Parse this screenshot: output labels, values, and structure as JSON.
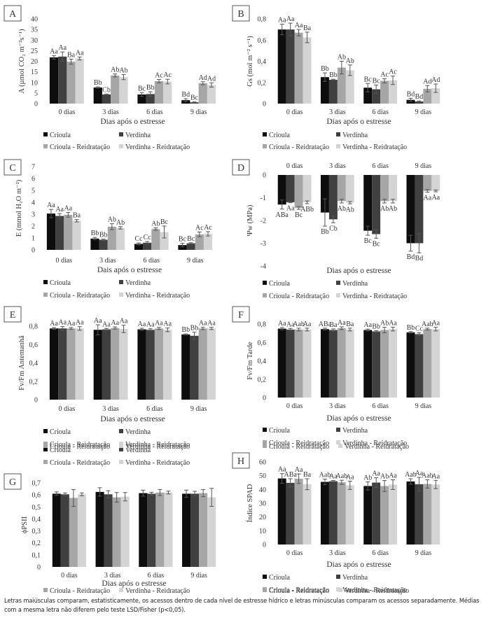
{
  "series_names": [
    "Crioula",
    "Verdinha",
    "Crioula - Reidratação",
    "Verdinha - Reidratação"
  ],
  "series_colors": [
    "#0d0d0d",
    "#404040",
    "#a6a6a6",
    "#d4d4d4"
  ],
  "caption": "Letras maiúsculas comparam, estatisticamente, os acessos dentro de cada nível de estresse hídrico e letras minúsculas comparam os acessos separadamente. Médias com a mesma letra não diferem pelo teste LSD/Fisher (p<0,05).",
  "chart_data": [
    {
      "panel": "A",
      "type": "bar",
      "ylabel": "A (µmol CO₂ m⁻²s⁻¹)",
      "xlabel": "Dias após o estresse",
      "categories": [
        "0 dias",
        "3 dias",
        "6 dias",
        "9 dias"
      ],
      "ylim": [
        0,
        40
      ],
      "yticks": [
        "0",
        "5",
        "10",
        "15",
        "20",
        "25",
        "30",
        "35",
        "40"
      ],
      "ytick_values": [
        0,
        5,
        10,
        15,
        20,
        25,
        30,
        35,
        40
      ],
      "series": [
        {
          "name": "Crioula",
          "values": [
            21.8,
            7.6,
            4.3,
            1.6
          ],
          "errors": [
            0.8,
            0.3,
            0.9,
            0.7
          ],
          "labels": [
            "Aa",
            "Bb",
            "Bc",
            "Bd"
          ]
        },
        {
          "name": "Verdinha",
          "values": [
            22.2,
            4.3,
            4.5,
            0.6
          ],
          "errors": [
            2.2,
            0.2,
            1.1,
            0.2
          ],
          "labels": [
            "Aa",
            "Cb",
            "Bb",
            "Bc"
          ]
        },
        {
          "name": "Crioula - Reidratação",
          "values": [
            19.8,
            13.3,
            10.6,
            9.6
          ],
          "errors": [
            1.2,
            0.7,
            0.8,
            0.7
          ],
          "labels": [
            "Ba",
            "Ab",
            "Ac",
            "Ad"
          ]
        },
        {
          "name": "Verdinha - Reidratação",
          "values": [
            21.3,
            12.5,
            10.4,
            8.8
          ],
          "errors": [
            0.7,
            1.2,
            1.1,
            1.0
          ],
          "labels": [
            "Aa",
            "Ab",
            "Ac",
            "Ad"
          ]
        }
      ]
    },
    {
      "panel": "B",
      "type": "bar",
      "ylabel": "Gs (mol m⁻² s⁻¹)",
      "xlabel": "Dias após o estresse",
      "categories": [
        "0 dias",
        "3 dias",
        "6 dias",
        "9 dias"
      ],
      "ylim": [
        0,
        0.8
      ],
      "yticks": [
        "0",
        "0,2",
        "0,4",
        "0,6",
        "0,8"
      ],
      "ytick_values": [
        0,
        0.2,
        0.4,
        0.6,
        0.8
      ],
      "series": [
        {
          "name": "Crioula",
          "values": [
            0.7,
            0.25,
            0.15,
            0.035
          ],
          "errors": [
            0.05,
            0.04,
            0.04,
            0.015
          ],
          "labels": [
            "Aa",
            "Bb",
            "Bc",
            "Bd"
          ]
        },
        {
          "name": "Verdinha",
          "values": [
            0.7,
            0.225,
            0.135,
            0.02
          ],
          "errors": [
            0.06,
            0.005,
            0.04,
            0.005
          ],
          "labels": [
            "Aa",
            "Bb",
            "Bc",
            "Bd"
          ]
        },
        {
          "name": "Crioula - Reidratação",
          "values": [
            0.67,
            0.34,
            0.215,
            0.14
          ],
          "errors": [
            0.03,
            0.06,
            0.02,
            0.03
          ],
          "labels": [
            "Aa",
            "Ab",
            "Ac",
            "Ad"
          ]
        },
        {
          "name": "Verdinha - Reidratação",
          "values": [
            0.625,
            0.315,
            0.22,
            0.145
          ],
          "errors": [
            0.05,
            0.05,
            0.04,
            0.04
          ],
          "labels": [
            "Ba",
            "Ab",
            "Ac",
            "Ad"
          ]
        }
      ]
    },
    {
      "panel": "C",
      "type": "bar",
      "ylabel": "E (mmol H₂O m⁻²)",
      "xlabel": "Dais após o estresse",
      "categories": [
        "0 dias",
        "3 dias",
        "6 dias",
        "9 dias"
      ],
      "ylim": [
        0,
        7
      ],
      "yticks": [
        "0",
        "1",
        "2",
        "3",
        "4",
        "5",
        "6",
        "7"
      ],
      "ytick_values": [
        0,
        1,
        2,
        3,
        4,
        5,
        6,
        7
      ],
      "series": [
        {
          "name": "Crioula",
          "values": [
            3.05,
            0.95,
            0.5,
            0.4
          ],
          "errors": [
            0.35,
            0.1,
            0.08,
            0.15
          ],
          "labels": [
            "Aa",
            "Bb",
            "Cc",
            "Bc"
          ]
        },
        {
          "name": "Verdinha",
          "values": [
            2.85,
            0.85,
            0.6,
            0.55
          ],
          "errors": [
            0.2,
            0.05,
            0.1,
            0.05
          ],
          "labels": [
            "Aa",
            "Bb",
            "Cc",
            "Bc"
          ]
        },
        {
          "name": "Crioula - Reidratação",
          "values": [
            2.95,
            1.95,
            1.75,
            1.3
          ],
          "errors": [
            0.2,
            0.25,
            0.1,
            0.2
          ],
          "labels": [
            "Aa",
            "Ab",
            "Ab",
            "Ac"
          ]
        },
        {
          "name": "Verdinha - Reidratação",
          "values": [
            2.45,
            1.85,
            1.5,
            1.35
          ],
          "errors": [
            0.1,
            0.1,
            0.5,
            0.18
          ],
          "labels": [
            "Ba",
            "Ab",
            "Bc",
            "Ac"
          ]
        }
      ]
    },
    {
      "panel": "D",
      "type": "bar",
      "ylabel": "Ψw (MPa)",
      "xlabel": "Dias após o estresse",
      "categories": [
        "0 dias",
        "3 dias",
        "6 dias",
        "9 dias"
      ],
      "category_position": "top",
      "ylim": [
        -4,
        0
      ],
      "yticks": [
        "-4",
        "-3",
        "-2",
        "-1",
        "0"
      ],
      "ytick_values": [
        -4,
        -3,
        -2,
        -1,
        0
      ],
      "series": [
        {
          "name": "Crioula",
          "values": [
            -1.3,
            -1.65,
            -2.45,
            -3.0
          ],
          "errors": [
            0.2,
            0.6,
            0.2,
            0.35
          ],
          "labels": [
            "ABa",
            "Bb",
            "Bc",
            "Bd"
          ]
        },
        {
          "name": "Verdinha",
          "values": [
            -1.2,
            -1.95,
            -2.6,
            -3.0
          ],
          "errors": [
            0.02,
            0.15,
            0.18,
            0.42
          ],
          "labels": [
            "Aa",
            "Cb",
            "Bc",
            "Bd"
          ]
        },
        {
          "name": "Crioula - Reidratação",
          "values": [
            -1.45,
            -1.15,
            -1.15,
            -0.7
          ],
          "errors": [
            0.06,
            0.08,
            0.08,
            0.06
          ],
          "labels": [
            "Bc",
            "Ab",
            "Ab",
            "Aa"
          ]
        },
        {
          "name": "Verdinha - Reidratação",
          "values": [
            -1.2,
            -1.22,
            -1.15,
            -0.7
          ],
          "errors": [
            0.06,
            0.05,
            0.08,
            0.04
          ],
          "labels": [
            "ABb",
            "Ab",
            "Ab",
            "Aa"
          ]
        }
      ]
    },
    {
      "panel": "E",
      "type": "bar",
      "ylabel": "Fv/Fm Antemanhã",
      "xlabel": "Dias após o estresse",
      "categories": [
        "0 dias",
        "3 dias",
        "6 dias",
        "9 dias"
      ],
      "ylim": [
        0,
        0.8
      ],
      "yticks": [
        "0",
        "0,2",
        "0,4",
        "0,6",
        "0,8"
      ],
      "ytick_values": [
        0,
        0.2,
        0.4,
        0.6,
        0.8
      ],
      "series": [
        {
          "name": "Crioula",
          "values": [
            0.775,
            0.76,
            0.765,
            0.71
          ],
          "errors": [
            0.01,
            0.055,
            0.012,
            0.005
          ],
          "labels": [
            "Aa",
            "Aa",
            "Aa",
            "Bb"
          ]
        },
        {
          "name": "Verdinha",
          "values": [
            0.775,
            0.765,
            0.76,
            0.695
          ],
          "errors": [
            0.02,
            0.01,
            0.012,
            0.04
          ],
          "labels": [
            "Aa",
            "Aa",
            "Aa",
            "Bb"
          ]
        },
        {
          "name": "Crioula - Reidratação",
          "values": [
            0.775,
            0.78,
            0.775,
            0.775
          ],
          "errors": [
            0.01,
            0.012,
            0.012,
            0.012
          ],
          "labels": [
            "Aa",
            "Aa",
            "Aa",
            "Aa"
          ]
        },
        {
          "name": "Verdinha - Reidratação",
          "values": [
            0.775,
            0.77,
            0.76,
            0.775
          ],
          "errors": [
            0.02,
            0.04,
            0.02,
            0.012
          ],
          "labels": [
            "Aa",
            "Aa",
            "Aa",
            "Aa"
          ]
        }
      ]
    },
    {
      "panel": "F",
      "type": "bar",
      "ylabel": "Fv/Fm Tarde",
      "xlabel": "Dias após o estresse",
      "categories": [
        "0 dias",
        "3 dias",
        "6 dias",
        "9 dias"
      ],
      "ylim": [
        0,
        0.8
      ],
      "yticks": [
        "0",
        "0,2",
        "0,4",
        "0,6",
        "0,8"
      ],
      "ytick_values": [
        0,
        0.2,
        0.4,
        0.6,
        0.8
      ],
      "series": [
        {
          "name": "Crioula",
          "values": [
            0.75,
            0.745,
            0.735,
            0.71
          ],
          "errors": [
            0.012,
            0.01,
            0.01,
            0.008
          ],
          "labels": [
            "Aa",
            "ABa",
            "Aa",
            "Bb"
          ]
        },
        {
          "name": "Verdinha",
          "values": [
            0.74,
            0.735,
            0.72,
            0.69
          ],
          "errors": [
            0.012,
            0.012,
            0.008,
            0.015
          ],
          "labels": [
            "Aa",
            "Ba",
            "Bb",
            "Cc"
          ]
        },
        {
          "name": "Crioula - Reidratação",
          "values": [
            0.74,
            0.755,
            0.735,
            0.745
          ],
          "errors": [
            0.015,
            0.015,
            0.03,
            0.01
          ],
          "labels": [
            "Aab",
            "Aa",
            "Ab",
            "Aab"
          ]
        },
        {
          "name": "Verdinha - Reidratação",
          "values": [
            0.74,
            0.74,
            0.745,
            0.745
          ],
          "errors": [
            0.015,
            0.015,
            0.02,
            0.02
          ],
          "labels": [
            "Aa",
            "Ba",
            "Aa",
            "Aa"
          ]
        }
      ]
    },
    {
      "panel": "G",
      "type": "bar",
      "ylabel": "ϕPSII",
      "xlabel": "Dias após o estresse",
      "categories": [
        "0 dias",
        "3 dias",
        "6 dias",
        "9 dias"
      ],
      "ylim": [
        0,
        0.7
      ],
      "yticks": [
        "0",
        "0,1",
        "0,2",
        "0,3",
        "0,4",
        "0,5",
        "0,6",
        "0,7"
      ],
      "ytick_values": [
        0,
        0.1,
        0.2,
        0.3,
        0.4,
        0.5,
        0.6,
        0.7
      ],
      "series": [
        {
          "name": "Crioula",
          "values": [
            0.61,
            0.625,
            0.615,
            0.61
          ],
          "errors": [
            0.015,
            0.035,
            0.025,
            0.03
          ],
          "labels": [
            "",
            "",
            "",
            ""
          ]
        },
        {
          "name": "Verdinha",
          "values": [
            0.605,
            0.605,
            0.61,
            0.61
          ],
          "errors": [
            0.012,
            0.03,
            0.012,
            0.02
          ],
          "labels": [
            "",
            "",
            "",
            ""
          ]
        },
        {
          "name": "Crioula - Reidratação",
          "values": [
            0.575,
            0.58,
            0.62,
            0.615
          ],
          "errors": [
            0.07,
            0.04,
            0.025,
            0.03
          ],
          "labels": [
            "",
            "",
            "",
            ""
          ]
        },
        {
          "name": "Verdinha - Reidratação",
          "values": [
            0.605,
            0.585,
            0.62,
            0.58
          ],
          "errors": [
            0.012,
            0.035,
            0.012,
            0.075
          ],
          "labels": [
            "",
            "",
            "",
            ""
          ]
        }
      ]
    },
    {
      "panel": "H",
      "type": "bar",
      "ylabel": "Índice SPAD",
      "xlabel": "Dias após o estresse",
      "categories": [
        "0 dias",
        "3 dias",
        "6 dias",
        "9 dias"
      ],
      "ylim": [
        0,
        60
      ],
      "yticks": [
        "0",
        "10",
        "20",
        "30",
        "40",
        "50",
        "60"
      ],
      "ytick_values": [
        0,
        10,
        20,
        30,
        40,
        50,
        60
      ],
      "series": [
        {
          "name": "Crioula",
          "values": [
            48,
            45.5,
            42.5,
            45.8
          ],
          "errors": [
            3.5,
            2,
            3,
            2
          ],
          "labels": [
            "Aa",
            "Aab",
            "Ab",
            "Aab"
          ]
        },
        {
          "name": "Verdinha",
          "values": [
            44.8,
            46,
            45,
            43.8
          ],
          "errors": [
            3,
            0.5,
            3.5,
            5
          ],
          "labels": [
            "ABa",
            "Aa",
            "Aa",
            "Aa"
          ]
        },
        {
          "name": "Crioula - Reidratação",
          "values": [
            47.8,
            45.2,
            42.5,
            44
          ],
          "errors": [
            3.5,
            1.5,
            4,
            3
          ],
          "labels": [
            "Aa",
            "Aab",
            "Ab",
            "Aab"
          ]
        },
        {
          "name": "Verdinha - Reidratação",
          "values": [
            43.8,
            43,
            43.5,
            43.6
          ],
          "errors": [
            4,
            3,
            3.5,
            3
          ],
          "labels": [
            "Ba",
            "Aa",
            "Aa",
            "Aa"
          ]
        }
      ]
    }
  ]
}
